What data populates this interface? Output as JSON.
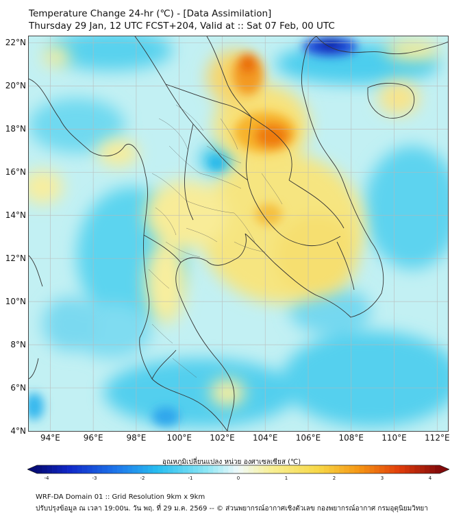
{
  "title_line1": "Temperature Change 24-hr (℃) - [Data Assimilation]",
  "title_line2": "Thursday 29 Jan, 12 UTC FCST+204, Valid at :: Sat 07 Feb, 00 UTC",
  "lat_labels": [
    "22°N",
    "20°N",
    "18°N",
    "16°N",
    "14°N",
    "12°N",
    "10°N",
    "8°N",
    "6°N",
    "4°N"
  ],
  "lon_labels": [
    "94°E",
    "96°E",
    "98°E",
    "100°E",
    "102°E",
    "104°E",
    "106°E",
    "108°E",
    "110°E",
    "112°E"
  ],
  "colorbar": {
    "title": "อุณหภูมิเปลี่ยนแปลง หน่วย องศาเซลเซียส (℃)",
    "ticks": [
      "-4",
      "-3",
      "-2",
      "-1",
      "0",
      "1",
      "2",
      "3",
      "4"
    ]
  },
  "footer_line1": "WRF-DA Domain 01 :: Grid Resolution 9km x 9km",
  "footer_line2": "ปรับปรุงข้อมูล ณ เวลา 19:00น. วัน พฤ. ที่ 29 ม.ค. 2569 -- © ส่วนพยากรณ์อากาศเชิงตัวเลข กองพยากรณ์อากาศ กรมอุตุนิยมวิทยา",
  "map_extent": {
    "lon_min": 93,
    "lon_max": 112.5,
    "lat_min": 4,
    "lat_max": 22.3
  },
  "colors": {
    "base": "#bff0f2",
    "cold": "#29c3ec",
    "deep_cold": "#1030c8",
    "warm": "#f7e98a",
    "hot": "#f5a000",
    "hotter": "#e55c00"
  }
}
